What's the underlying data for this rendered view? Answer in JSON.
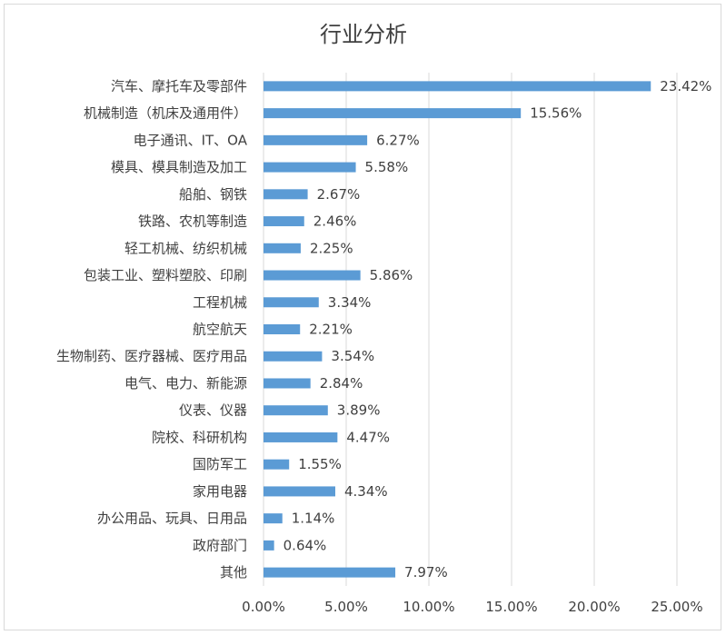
{
  "chart_data": {
    "type": "bar",
    "orientation": "horizontal",
    "title": "行业分析",
    "categories": [
      "汽车、摩托车及零部件",
      "机械制造（机床及通用件）",
      "电子通讯、IT、OA",
      "模具、模具制造及加工",
      "船舶、钢铁",
      "铁路、农机等制造",
      "轻工机械、纺织机械",
      "包装工业、塑料塑胶、印刷",
      "工程机械",
      "航空航天",
      "生物制药、医疗器械、医疗用品",
      "电气、电力、新能源",
      "仪表、仪器",
      "院校、科研机构",
      "国防军工",
      "家用电器",
      "办公用品、玩具、日用品",
      "政府部门",
      "其他"
    ],
    "values": [
      23.42,
      15.56,
      6.27,
      5.58,
      2.67,
      2.46,
      2.25,
      5.86,
      3.34,
      2.21,
      3.54,
      2.84,
      3.89,
      4.47,
      1.55,
      4.34,
      1.14,
      0.64,
      7.97
    ],
    "value_labels": [
      "23.42%",
      "15.56%",
      "6.27%",
      "5.58%",
      "2.67%",
      "2.46%",
      "2.25%",
      "5.86%",
      "3.34%",
      "2.21%",
      "3.54%",
      "2.84%",
      "3.89%",
      "4.47%",
      "1.55%",
      "4.34%",
      "1.14%",
      "0.64%",
      "7.97%"
    ],
    "xlim": [
      0,
      25
    ],
    "xticks": [
      0,
      5,
      10,
      15,
      20,
      25
    ],
    "xtick_labels": [
      "0.00%",
      "5.00%",
      "10.00%",
      "15.00%",
      "20.00%",
      "25.00%"
    ],
    "grid": true,
    "legend": "none",
    "bar_color": "#5b9bd5"
  }
}
